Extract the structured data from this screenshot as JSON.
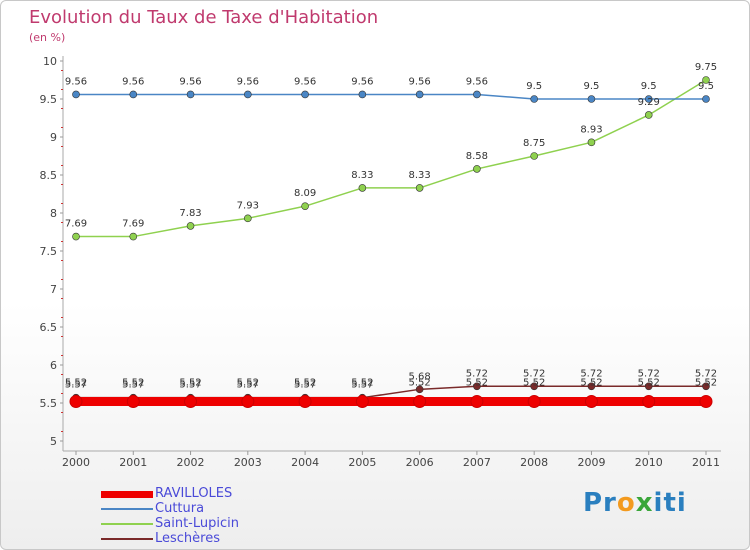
{
  "title": "Evolution du Taux de Taxe d'Habitation",
  "subtitle": "(en %)",
  "chart_data": {
    "type": "line",
    "x": [
      "2000",
      "2001",
      "2002",
      "2003",
      "2004",
      "2005",
      "2006",
      "2007",
      "2008",
      "2009",
      "2010",
      "2011"
    ],
    "ylim": [
      5,
      10
    ],
    "yticks": [
      "5",
      "5.5",
      "6",
      "6.5",
      "7",
      "7.5",
      "8",
      "8.5",
      "9",
      "9.5",
      "10"
    ],
    "grid": false,
    "legend_position": "bottom-left",
    "series": [
      {
        "name": "RAVILLOLES",
        "color": "#ee0000",
        "values": [
          5.52,
          5.52,
          5.52,
          5.52,
          5.52,
          5.52,
          5.52,
          5.52,
          5.52,
          5.52,
          5.52,
          5.52
        ],
        "labels": [
          "",
          "",
          "",
          "",
          "",
          "",
          "",
          "",
          "",
          "",
          "",
          ""
        ]
      },
      {
        "name": "Cuttura",
        "color": "#4a86c5",
        "values": [
          9.56,
          9.56,
          9.56,
          9.56,
          9.56,
          9.56,
          9.56,
          9.56,
          9.5,
          9.5,
          9.5,
          9.5
        ],
        "labels": [
          "9.56",
          "9.56",
          "9.56",
          "9.56",
          "9.56",
          "9.56",
          "9.56",
          "9.56",
          "9.5",
          "9.5",
          "9.5",
          "9.5"
        ]
      },
      {
        "name": "Saint-Lupicin",
        "color": "#8fd14f",
        "values": [
          7.69,
          7.69,
          7.83,
          7.93,
          8.09,
          8.33,
          8.33,
          8.58,
          8.75,
          8.93,
          9.29,
          9.75
        ],
        "labels": [
          "7.69",
          "7.69",
          "7.83",
          "7.93",
          "8.09",
          "8.33",
          "8.33",
          "8.58",
          "8.75",
          "8.93",
          "9.29",
          "9.75"
        ]
      },
      {
        "name": "Leschères",
        "color": "#7a2a2a",
        "values": [
          5.57,
          5.57,
          5.57,
          5.57,
          5.57,
          5.57,
          5.68,
          5.72,
          5.72,
          5.72,
          5.72,
          5.72
        ],
        "labels": [
          "5.57",
          "5.57",
          "5.57",
          "5.57",
          "5.57",
          "5.57",
          "5.68",
          "5.72",
          "5.72",
          "5.72",
          "5.72",
          "5.72"
        ]
      }
    ],
    "value_labels_extra": [
      "5.52",
      "5.52",
      "5.52",
      "5.52",
      "5.52",
      "5.52",
      "5.52",
      "5.52",
      "5.52",
      "5.52",
      "5.52",
      "5.52"
    ]
  },
  "logo": {
    "p1": "Pr",
    "o": "o",
    "x": "x",
    "p2": "iti"
  }
}
